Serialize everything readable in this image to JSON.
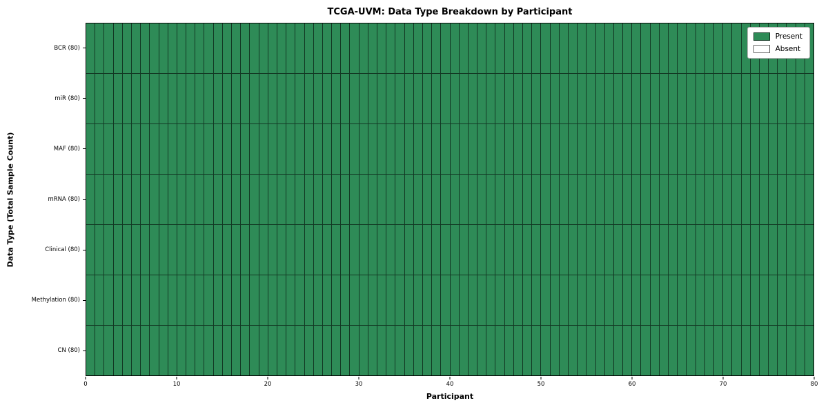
{
  "chart_data": {
    "type": "heatmap",
    "title": "TCGA-UVM: Data Type Breakdown by Participant",
    "xlabel": "Participant",
    "ylabel": "Data Type (Total Sample Count)",
    "x_range": [
      0,
      80
    ],
    "x_ticks": [
      0,
      10,
      20,
      30,
      40,
      50,
      60,
      70,
      80
    ],
    "n_participants": 80,
    "rows": [
      {
        "label": "BCR (80)",
        "present_count": 80,
        "absent_count": 0
      },
      {
        "label": "miR (80)",
        "present_count": 80,
        "absent_count": 0
      },
      {
        "label": "MAF (80)",
        "present_count": 80,
        "absent_count": 0
      },
      {
        "label": "mRNA (80)",
        "present_count": 80,
        "absent_count": 0
      },
      {
        "label": "Clinical (80)",
        "present_count": 80,
        "absent_count": 0
      },
      {
        "label": "Methylation (80)",
        "present_count": 80,
        "absent_count": 0
      },
      {
        "label": "CN (80)",
        "present_count": 80,
        "absent_count": 0
      }
    ],
    "legend": {
      "position": "upper right",
      "items": [
        {
          "label": "Present",
          "color": "#2e8b57"
        },
        {
          "label": "Absent",
          "color": "#ffffff"
        }
      ]
    },
    "colors": {
      "present": "#2e8b57",
      "absent": "#ffffff",
      "cell_edge": "rgba(0,0,0,0.6)"
    },
    "grid": false
  }
}
